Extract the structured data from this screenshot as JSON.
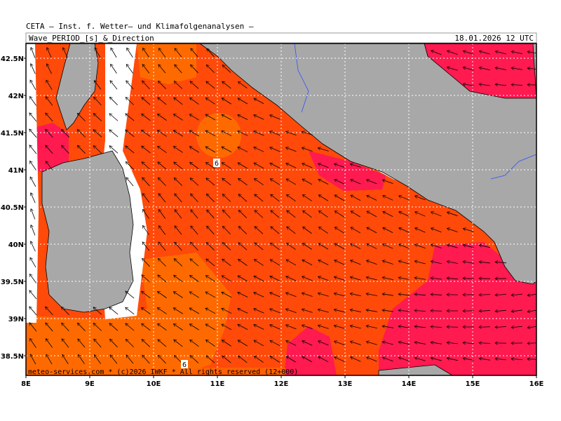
{
  "header": {
    "institute": "CETA — Inst. f. Wetter— und Klimafolgenanalysen —",
    "title": "Wave_PERIOD_[s]_&_Direction",
    "datetime": "18.01.2026 12 UTC"
  },
  "map": {
    "lon_labels": [
      "8E",
      "9E",
      "10E",
      "11E",
      "12E",
      "13E",
      "14E",
      "15E",
      "16E"
    ],
    "lat_labels": [
      "42.5N",
      "42N",
      "41.5N",
      "41N",
      "40.5N",
      "40N",
      "39.5N",
      "39N",
      "38.5N"
    ],
    "contour_labels": [
      "6",
      "6"
    ],
    "credit": "meteo-services.com * (c)2026 IWKF * All rights reserved (12+000)"
  }
}
